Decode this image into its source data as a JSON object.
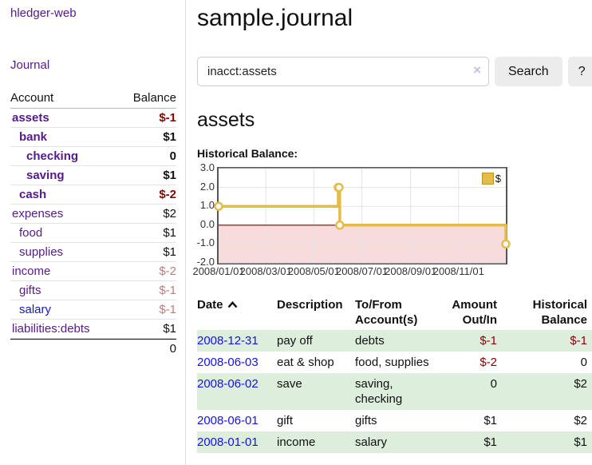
{
  "app": {
    "brand": "hledger-web",
    "nav_journal": "Journal"
  },
  "colors": {
    "link_purple": "#551a8b",
    "link_blue": "#1414e0",
    "negative_red": "#8b0000",
    "pale_negative": "#bc7d7d",
    "row_stripe_green": "#ddeedd",
    "chart_gold": "#e6bc49"
  },
  "sidebar": {
    "header": {
      "account": "Account",
      "balance": "Balance"
    },
    "accounts": [
      {
        "name": "assets",
        "balance": "$-1"
      },
      {
        "name": "bank",
        "balance": "$1"
      },
      {
        "name": "checking",
        "balance": "0"
      },
      {
        "name": "saving",
        "balance": "$1"
      },
      {
        "name": "cash",
        "balance": "$-2"
      },
      {
        "name": "expenses",
        "balance": "$2"
      },
      {
        "name": "food",
        "balance": "$1"
      },
      {
        "name": "supplies",
        "balance": "$1"
      },
      {
        "name": "income",
        "balance": "$-2"
      },
      {
        "name": "gifts",
        "balance": "$-1"
      },
      {
        "name": "salary",
        "balance": "$-1"
      },
      {
        "name": "liabilities:debts",
        "balance": "$1"
      }
    ],
    "total": "0"
  },
  "header": {
    "title": "sample.journal"
  },
  "search": {
    "query": "inacct:assets",
    "clear_label": "×",
    "button_label": "Search",
    "help_label": "?"
  },
  "account_page": {
    "heading": "assets",
    "chart_label": "Historical Balance:"
  },
  "chart_data": {
    "type": "line",
    "step": true,
    "title": "Historical Balance:",
    "legend": "$",
    "x_range": [
      "2008-01-01",
      "2008-12-31"
    ],
    "ylim": [
      -2,
      3
    ],
    "y_ticks": [
      3.0,
      2.0,
      1.0,
      0.0,
      -1.0,
      -2.0
    ],
    "x_ticks": [
      "2008/01/01",
      "2008/03/01",
      "2008/05/01",
      "2008/07/01",
      "2008/09/01",
      "2008/11/01"
    ],
    "grid": true,
    "legend_position": "top-right",
    "series": [
      {
        "name": "$",
        "points": [
          [
            "2008-01-01",
            1
          ],
          [
            "2008-06-01",
            2
          ],
          [
            "2008-06-02",
            2
          ],
          [
            "2008-06-03",
            0
          ],
          [
            "2008-12-31",
            -1
          ]
        ]
      }
    ],
    "colors": {
      "line": "#e6bc49",
      "marker_fill": "#ffffff",
      "zero_line": "#8b0000",
      "negative_zone": "#f8dcdc",
      "grid": "#e3e3e3",
      "border": "#555555"
    }
  },
  "register_table": {
    "columns": {
      "date": "Date",
      "description": "Description",
      "accounts": "To/From Account(s)",
      "amount": "Amount Out/In",
      "historical": "Historical Balance"
    },
    "rows": [
      {
        "date": "2008-12-31",
        "description": "pay off",
        "accounts": "debts",
        "amount": "$-1",
        "balance": "$-1"
      },
      {
        "date": "2008-06-03",
        "description": "eat & shop",
        "accounts": "food, supplies",
        "amount": "$-2",
        "balance": "0"
      },
      {
        "date": "2008-06-02",
        "description": "save",
        "accounts": "saving, checking",
        "amount": "0",
        "balance": "$2"
      },
      {
        "date": "2008-06-01",
        "description": "gift",
        "accounts": "gifts",
        "amount": "$1",
        "balance": "$2"
      },
      {
        "date": "2008-01-01",
        "description": "income",
        "accounts": "salary",
        "amount": "$1",
        "balance": "$1"
      }
    ]
  }
}
